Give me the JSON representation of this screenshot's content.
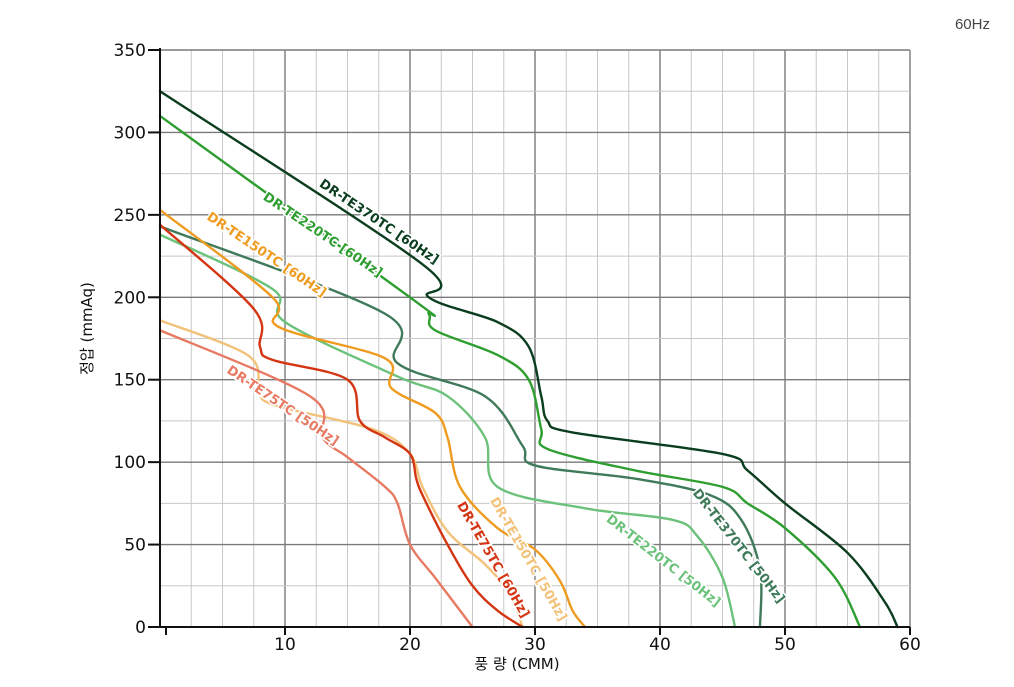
{
  "top_right_label": "60Hz",
  "chart_data": {
    "type": "line",
    "title": "",
    "xlabel": "풍 량 (CMM)",
    "ylabel": "정압 (mmAq)",
    "xlim": [
      0,
      60
    ],
    "ylim": [
      0,
      350
    ],
    "x_ticks": [
      10,
      20,
      30,
      40,
      50,
      60
    ],
    "y_ticks": [
      0,
      50,
      100,
      150,
      200,
      250,
      300,
      350
    ],
    "grid": true,
    "series": [
      {
        "name": "DR-TE370TC [60Hz]",
        "color": "#0b3d1f",
        "points": [
          [
            0,
            325
          ],
          [
            21,
            220
          ],
          [
            21.5,
            200
          ],
          [
            27,
            185
          ],
          [
            29.5,
            170
          ],
          [
            30.5,
            140
          ],
          [
            31,
            125
          ],
          [
            33,
            118
          ],
          [
            45,
            105
          ],
          [
            47,
            95
          ],
          [
            50,
            75
          ],
          [
            55,
            45
          ],
          [
            58,
            15
          ],
          [
            59,
            0
          ]
        ]
      },
      {
        "name": "DR-TE220TC [60Hz]",
        "color": "#2e9e30",
        "points": [
          [
            0,
            310
          ],
          [
            20,
            200
          ],
          [
            21.5,
            190
          ],
          [
            22,
            180
          ],
          [
            27,
            165
          ],
          [
            29.5,
            150
          ],
          [
            30.5,
            120
          ],
          [
            31,
            108
          ],
          [
            38,
            95
          ],
          [
            45,
            85
          ],
          [
            47,
            75
          ],
          [
            50,
            60
          ],
          [
            54,
            30
          ],
          [
            56,
            0
          ]
        ]
      },
      {
        "name": "DR-TE370TC [50Hz]",
        "color": "#3f7a5a",
        "points": [
          [
            0,
            243
          ],
          [
            18,
            190
          ],
          [
            19,
            160
          ],
          [
            26,
            140
          ],
          [
            29,
            110
          ],
          [
            30,
            98
          ],
          [
            38,
            90
          ],
          [
            44,
            80
          ],
          [
            46.5,
            65
          ],
          [
            48,
            35
          ],
          [
            48,
            0
          ]
        ]
      },
      {
        "name": "DR-TE220TC [50Hz]",
        "color": "#6cc27b",
        "points": [
          [
            0,
            238
          ],
          [
            9,
            205
          ],
          [
            10,
            185
          ],
          [
            19,
            152
          ],
          [
            23,
            140
          ],
          [
            26,
            115
          ],
          [
            27,
            85
          ],
          [
            34,
            72
          ],
          [
            41,
            65
          ],
          [
            43,
            55
          ],
          [
            45,
            30
          ],
          [
            46,
            0
          ]
        ]
      },
      {
        "name": "DR-TE150TC [60Hz]",
        "color": "#ef9b1f",
        "points": [
          [
            0,
            253
          ],
          [
            9,
            200
          ],
          [
            9.5,
            182
          ],
          [
            18,
            163
          ],
          [
            18.5,
            145
          ],
          [
            22,
            130
          ],
          [
            23,
            115
          ],
          [
            24,
            85
          ],
          [
            27,
            60
          ],
          [
            30,
            47
          ],
          [
            32,
            28
          ],
          [
            33,
            10
          ],
          [
            34,
            0
          ]
        ]
      },
      {
        "name": "DR-TE150TC [50Hz]",
        "color": "#f3c27a",
        "points": [
          [
            0,
            186
          ],
          [
            7,
            165
          ],
          [
            8,
            145
          ],
          [
            9,
            135
          ],
          [
            17,
            120
          ],
          [
            20,
            105
          ],
          [
            21,
            85
          ],
          [
            23,
            58
          ],
          [
            26,
            38
          ],
          [
            28,
            20
          ],
          [
            29,
            0
          ]
        ]
      },
      {
        "name": "DR-TE75TC [60Hz]",
        "color": "#d43512",
        "points": [
          [
            0,
            244
          ],
          [
            7.5,
            193
          ],
          [
            8,
            170
          ],
          [
            9,
            162
          ],
          [
            15,
            150
          ],
          [
            16,
            125
          ],
          [
            18,
            115
          ],
          [
            20,
            105
          ],
          [
            20.5,
            90
          ],
          [
            21,
            80
          ],
          [
            23,
            50
          ],
          [
            25,
            25
          ],
          [
            27,
            10
          ],
          [
            29,
            0
          ]
        ]
      },
      {
        "name": "DR-TE75TC [50Hz]",
        "color": "#e77a62",
        "points": [
          [
            0,
            180
          ],
          [
            12,
            140
          ],
          [
            13,
            115
          ],
          [
            15,
            103
          ],
          [
            18,
            85
          ],
          [
            19,
            75
          ],
          [
            20,
            50
          ],
          [
            22,
            30
          ],
          [
            24,
            10
          ],
          [
            25,
            0
          ]
        ]
      }
    ],
    "annotations": [
      {
        "text": "DR-TE370TC [60Hz]",
        "series": 0,
        "at": [
          22,
          220
        ],
        "angle": 34,
        "anchor": "end"
      },
      {
        "text": "DR-TE220TC [60Hz]",
        "series": 1,
        "at": [
          17.5,
          212
        ],
        "angle": 34,
        "anchor": "end"
      },
      {
        "text": "DR-TE150TC [60Hz]",
        "series": 4,
        "at": [
          13,
          200
        ],
        "angle": 34,
        "anchor": "end"
      },
      {
        "text": "DR-TE75TC [50Hz]",
        "series": 7,
        "at": [
          14,
          110
        ],
        "angle": 34,
        "anchor": "end"
      },
      {
        "text": "DR-TE75TC [60Hz]",
        "series": 6,
        "at": [
          29,
          5
        ],
        "angle": 60,
        "anchor": "end"
      },
      {
        "text": "DR-TE150TC [50Hz]",
        "series": 5,
        "at": [
          32,
          3
        ],
        "angle": 60,
        "anchor": "end"
      },
      {
        "text": "DR-TE220TC [50Hz]",
        "series": 3,
        "at": [
          44.5,
          12
        ],
        "angle": 38,
        "anchor": "end"
      },
      {
        "text": "DR-TE370TC [50Hz]",
        "series": 2,
        "at": [
          49.5,
          14
        ],
        "angle": 52,
        "anchor": "end"
      }
    ]
  }
}
